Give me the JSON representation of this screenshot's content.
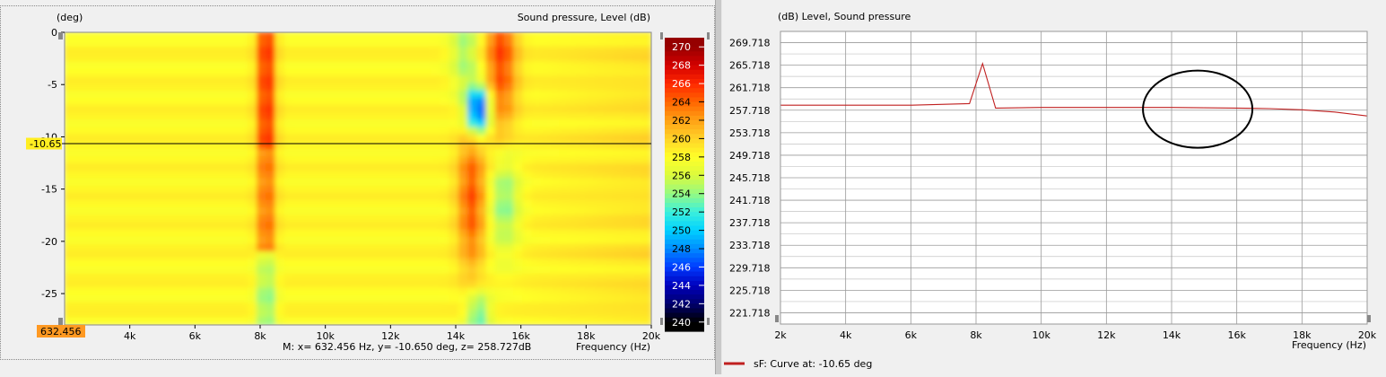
{
  "heatmap": {
    "yunit": "(deg)",
    "title": "Sound pressure, Level  (dB)",
    "cursor_y_label": "-10.65",
    "cursor_x_label": "632.456",
    "status": "M:  x= 632.456 Hz,  y= -10.650 deg, z= 258.727dB",
    "xlabel": "Frequency  (Hz)"
  },
  "lineplot": {
    "ytitle": "(dB)  Level, Sound pressure",
    "xlabel": "Frequency  (Hz)",
    "legend": "sF: Curve at: -10.65 deg"
  },
  "colors": {
    "curve": "#c02020",
    "cursor_label_bg": "#ffee22",
    "x_cursor_label_bg": "#ff9922"
  },
  "chart_data": [
    {
      "type": "heatmap",
      "title": "Sound pressure, Level  (dB)",
      "xlabel": "Frequency  (Hz)",
      "ylabel": "(deg)",
      "x_ticks": [
        "4k",
        "6k",
        "8k",
        "10k",
        "12k",
        "14k",
        "16k",
        "18k",
        "20k"
      ],
      "y_ticks": [
        "0",
        "-5",
        "-10",
        "-15",
        "-20",
        "-25"
      ],
      "xlim": [
        2000,
        20000
      ],
      "ylim": [
        -28,
        0
      ],
      "colorbar": {
        "ticks": [
          "270",
          "268",
          "266",
          "264",
          "262",
          "260",
          "258",
          "256",
          "254",
          "252",
          "250",
          "248",
          "246",
          "244",
          "242",
          "240"
        ],
        "range": [
          239,
          271
        ]
      },
      "cursor": {
        "y": -10.65,
        "x": 632.456,
        "z": 258.727
      }
    },
    {
      "type": "line",
      "xlabel": "Frequency  (Hz)",
      "ylabel": "(dB)  Level, Sound pressure",
      "x_ticks": [
        "2k",
        "4k",
        "6k",
        "8k",
        "10k",
        "12k",
        "14k",
        "16k",
        "18k",
        "20k"
      ],
      "y_ticks": [
        "269.718",
        "265.718",
        "261.718",
        "257.718",
        "253.718",
        "249.718",
        "245.718",
        "241.718",
        "237.718",
        "233.718",
        "229.718",
        "225.718",
        "221.718"
      ],
      "xlim": [
        2000,
        20000
      ],
      "ylim": [
        219.718,
        271.718
      ],
      "grid": true,
      "series": [
        {
          "name": "sF: Curve at: -10.65 deg",
          "x": [
            2000,
            4000,
            6000,
            7800,
            8200,
            8600,
            10000,
            12000,
            14000,
            16000,
            17000,
            18000,
            19000,
            20000
          ],
          "values": [
            258.6,
            258.6,
            258.6,
            258.9,
            266.0,
            258.1,
            258.2,
            258.2,
            258.2,
            258.1,
            258.0,
            257.8,
            257.4,
            256.7
          ]
        }
      ],
      "annotations": [
        {
          "type": "ellipse",
          "center_x": 14800,
          "center_y": 257.9
        }
      ]
    }
  ]
}
